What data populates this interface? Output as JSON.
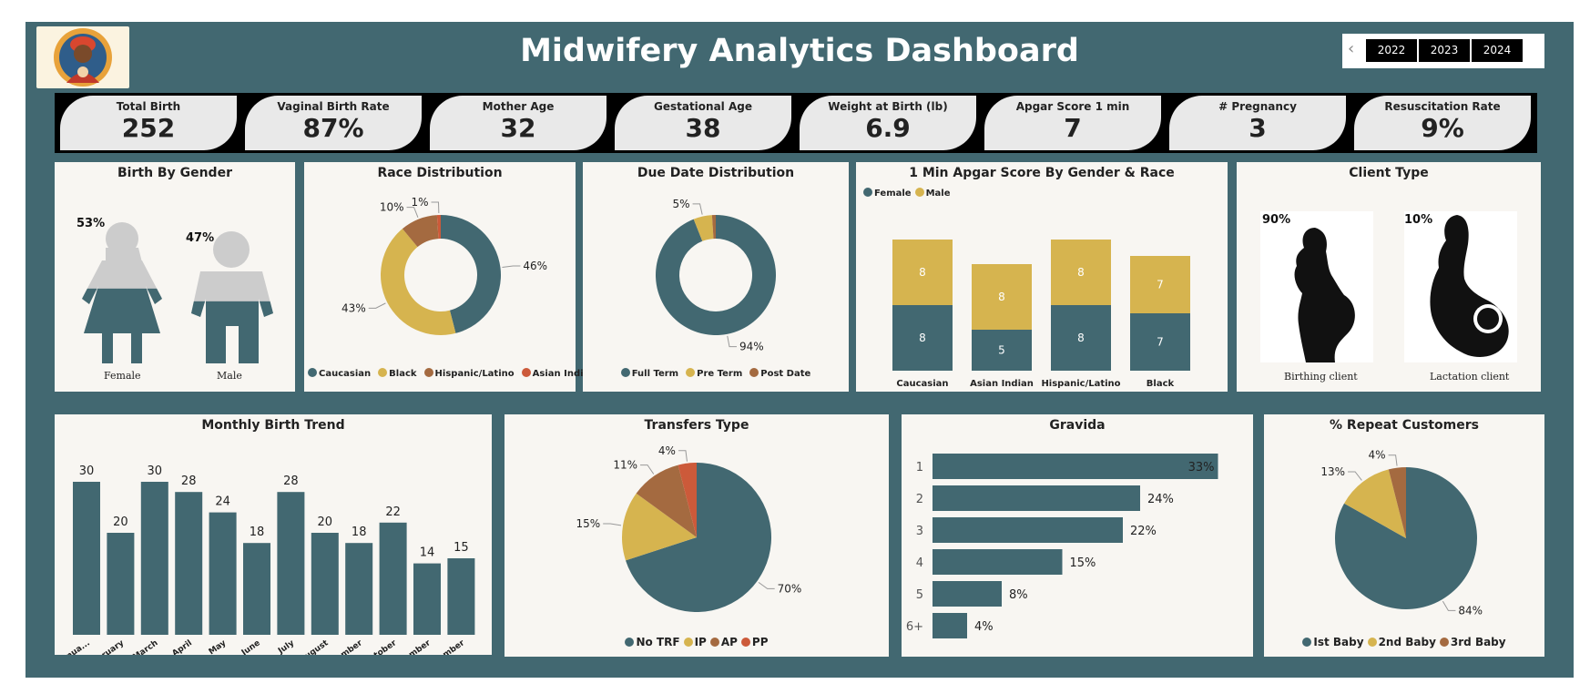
{
  "title": "Midwifery Analytics Dashboard",
  "colors": {
    "teal": "#426871",
    "gold": "#d6b44f",
    "brown": "#a46a40",
    "orange": "#cc5a3a",
    "grey": "#cccccc",
    "panel": "#f8f6f2"
  },
  "years": [
    "2022",
    "2023",
    "2024"
  ],
  "kpis": [
    {
      "label": "Total Birth",
      "value": "252"
    },
    {
      "label": "Vaginal Birth Rate",
      "value": "87%"
    },
    {
      "label": "Mother Age",
      "value": "32"
    },
    {
      "label": "Gestational Age",
      "value": "38"
    },
    {
      "label": "Weight at Birth (lb)",
      "value": "6.9"
    },
    {
      "label": "Apgar Score 1 min",
      "value": "7"
    },
    {
      "label": "# Pregnancy",
      "value": "3"
    },
    {
      "label": "Resuscitation Rate",
      "value": "9%"
    }
  ],
  "gender": {
    "title": "Birth By Gender",
    "female": {
      "label": "Female",
      "pct": "53%",
      "fill_fraction": 0.53
    },
    "male": {
      "label": "Male",
      "pct": "47%",
      "fill_fraction": 0.47
    }
  },
  "client": {
    "title": "Client Type",
    "birthing": {
      "label": "Birthing client",
      "pct": "90%"
    },
    "lactation": {
      "label": "Lactation client",
      "pct": "10%"
    }
  },
  "chart_data": [
    {
      "id": "race",
      "type": "pie",
      "title": "Race Distribution",
      "donut": true,
      "categories": [
        "Caucasian",
        "Black",
        "Hispanic/Latino",
        "Asian Indian"
      ],
      "values": [
        46,
        43,
        10,
        1
      ],
      "labels": [
        "46%",
        "43%",
        "10%",
        "1%"
      ]
    },
    {
      "id": "due",
      "type": "pie",
      "title": "Due Date Distribution",
      "donut": true,
      "categories": [
        "Full Term",
        "Pre Term",
        "Post Date"
      ],
      "values": [
        94,
        5,
        1
      ],
      "labels": [
        "94%",
        "5%",
        ""
      ]
    },
    {
      "id": "apgar",
      "type": "bar",
      "stacked": true,
      "title": "1 Min Apgar Score By Gender & Race",
      "categories": [
        "Caucasian",
        "Asian Indian",
        "Hispanic/Latino",
        "Black"
      ],
      "series": [
        {
          "name": "Female",
          "values": [
            8,
            5,
            8,
            7
          ]
        },
        {
          "name": "Male",
          "values": [
            8,
            8,
            8,
            7
          ]
        }
      ],
      "ylim": [
        0,
        20
      ]
    },
    {
      "id": "monthly",
      "type": "bar",
      "title": "Monthly Birth Trend",
      "categories": [
        "Janua...",
        "February",
        "March",
        "April",
        "May",
        "June",
        "July",
        "August",
        "September",
        "October",
        "November",
        "December"
      ],
      "values": [
        30,
        20,
        30,
        28,
        24,
        18,
        28,
        20,
        18,
        22,
        14,
        15
      ],
      "ylim": [
        0,
        33
      ]
    },
    {
      "id": "transfers",
      "type": "pie",
      "title": "Transfers Type",
      "categories": [
        "No TRF",
        "IP",
        "AP",
        "PP"
      ],
      "values": [
        70,
        15,
        11,
        4
      ],
      "labels": [
        "70%",
        "15%",
        "11%",
        "4%"
      ]
    },
    {
      "id": "gravida",
      "type": "bar",
      "orientation": "horizontal",
      "title": "Gravida",
      "categories": [
        "1",
        "2",
        "3",
        "4",
        "5",
        "6+"
      ],
      "values": [
        33,
        24,
        22,
        15,
        8,
        4
      ],
      "labels": [
        "33%",
        "24%",
        "22%",
        "15%",
        "8%",
        "4%"
      ],
      "xlim": [
        0,
        34
      ]
    },
    {
      "id": "repeat",
      "type": "pie",
      "title": "% Repeat Customers",
      "categories": [
        "Ist Baby",
        "2nd Baby",
        "3rd Baby"
      ],
      "values": [
        84,
        13,
        4
      ],
      "labels": [
        "84%",
        "13%",
        "4%"
      ]
    }
  ]
}
